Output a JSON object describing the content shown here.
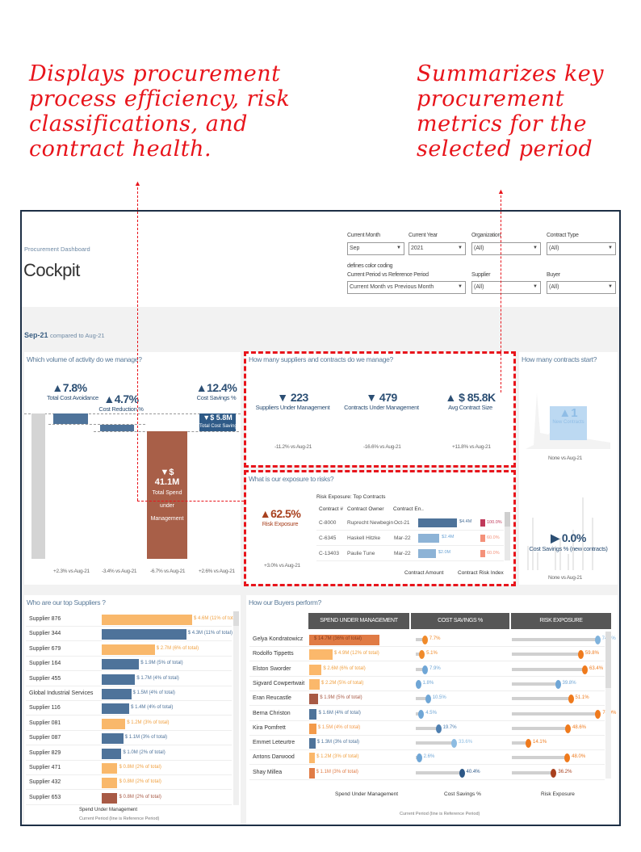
{
  "annotations": {
    "left": "Displays procurement\nprocess efficiency, risk\nclassifications, and\ncontract health.",
    "right": "Summarizes key\nprocurement\nmetrics for the\nselected period"
  },
  "header": {
    "subtitle": "Procurement Dashboard",
    "title": "Cockpit"
  },
  "filters": {
    "month": {
      "label": "Current Month",
      "value": "Sep"
    },
    "year": {
      "label": "Current Year",
      "value": "2021"
    },
    "organization": {
      "label": "Organization",
      "value": "(All)"
    },
    "contract_type": {
      "label": "Contract Type",
      "value": "(All)"
    },
    "period": {
      "label": "Current Period vs Reference Period",
      "note": "defines color coding",
      "value": "Current Month vs Previous Month"
    },
    "supplier": {
      "label": "Supplier",
      "value": "(All)"
    },
    "buyer": {
      "label": "Buyer",
      "value": "(All)"
    }
  },
  "period_header": {
    "current": "Sep-21",
    "compared": "compared to Aug-21"
  },
  "volume": {
    "title": "Which volume of activity do we manage?",
    "cost_avoidance": {
      "value": "7.8%",
      "label": "Total Cost Avoidance",
      "delta": "+2.3% vs Aug-21"
    },
    "cost_reduction": {
      "value": "4.7%",
      "label": "Cost Reduction %",
      "delta": "-3.4% vs Aug-21"
    },
    "total_spend": {
      "value": "$ 41.1M",
      "label": "Total Spend under Management",
      "delta": "-6.7% vs Aug-21"
    },
    "cost_savings": {
      "value": "12.4%",
      "label": "Cost Savings %",
      "bar_value": "$ 5.8M",
      "bar_label": "Total Cost Savings",
      "delta": "+2.6% vs Aug-21"
    }
  },
  "suppliers_contracts": {
    "title": "How many suppliers and contracts do we manage?",
    "kpis": [
      {
        "value": "223",
        "dir": "down",
        "label": "Suppliers Under Management",
        "delta": "-11.2% vs Aug-21"
      },
      {
        "value": "479",
        "dir": "down",
        "label": "Contracts Under Management",
        "delta": "-16.6% vs Aug-21"
      },
      {
        "value": "$ 85.8K",
        "dir": "up",
        "label": "Avg Contract Size",
        "delta": "+11.8% vs Aug-21"
      }
    ]
  },
  "contracts_start": {
    "title": "How many contracts start?",
    "value": "1",
    "label": "New Contracts",
    "delta": "None vs Aug-21"
  },
  "risk": {
    "title": "What is our exposure to risks?",
    "value": "62.5%",
    "label": "Risk Exposure",
    "delta": "+3.0% vs Aug-21",
    "table_title": "Risk Exposure: Top Contracts",
    "columns": [
      "Contract #",
      "Contract Owner",
      "Contract En.."
    ],
    "footer": [
      "Contract Amount",
      "Contract Risk Index"
    ],
    "rows": [
      {
        "id": "C-8000",
        "owner": "Ruprecht Newbegin",
        "end": "Oct-21",
        "amount": "$4.4M",
        "amount_m": 4.4,
        "index": "100.0%",
        "color": "#c0395a"
      },
      {
        "id": "C-6345",
        "owner": "Haskell Hitzke",
        "end": "Mar-22",
        "amount": "$2.4M",
        "amount_m": 2.4,
        "index": "60.0%",
        "color": "#f4917a"
      },
      {
        "id": "C-13403",
        "owner": "Paulie Tune",
        "end": "Mar-22",
        "amount": "$2.0M",
        "amount_m": 2.0,
        "index": "60.0%",
        "color": "#f4917a"
      }
    ]
  },
  "new_savings": {
    "value": "0.0%",
    "label": "Cost Savings % (new contracts)",
    "delta": "None vs Aug-21"
  },
  "top_suppliers": {
    "title": "Who are our top Suppliers ?",
    "axis": "Spend Under Management",
    "note": "Current Period  (line is Reference Period)",
    "rows": [
      {
        "name": "Supplier 876",
        "m": 4.6,
        "text": "$ 4.6M",
        "pct": "(11% of total)",
        "color": "#f9b86b"
      },
      {
        "name": "Supplier 344",
        "m": 4.3,
        "text": "$ 4.3M",
        "pct": "(11% of total)",
        "color": "#4e739a"
      },
      {
        "name": "Supplier 679",
        "m": 2.7,
        "text": "$ 2.7M",
        "pct": "(6% of total)",
        "color": "#f9b86b"
      },
      {
        "name": "Supplier 164",
        "m": 1.9,
        "text": "$ 1.9M",
        "pct": "(5% of total)",
        "color": "#4e739a"
      },
      {
        "name": "Supplier 455",
        "m": 1.7,
        "text": "$ 1.7M",
        "pct": "(4% of total)",
        "color": "#4e739a"
      },
      {
        "name": "Global Industrial Services",
        "m": 1.5,
        "text": "$ 1.5M",
        "pct": "(4% of total)",
        "color": "#4e739a"
      },
      {
        "name": "Supplier 116",
        "m": 1.4,
        "text": "$ 1.4M",
        "pct": "(4% of total)",
        "color": "#4e739a"
      },
      {
        "name": "Supplier 081",
        "m": 1.2,
        "text": "$ 1.2M",
        "pct": "(3% of total)",
        "color": "#f9b86b"
      },
      {
        "name": "Supplier 087",
        "m": 1.1,
        "text": "$ 1.1M",
        "pct": "(3% of total)",
        "color": "#4e739a"
      },
      {
        "name": "Supplier 829",
        "m": 1.0,
        "text": "$ 1.0M",
        "pct": "(2% of total)",
        "color": "#4e739a"
      },
      {
        "name": "Supplier 471",
        "m": 0.8,
        "text": "$ 0.8M",
        "pct": "(2% of total)",
        "color": "#f9b86b"
      },
      {
        "name": "Supplier 432",
        "m": 0.8,
        "text": "$ 0.8M",
        "pct": "(2% of total)",
        "color": "#f9b86b"
      },
      {
        "name": "Supplier 653",
        "m": 0.8,
        "text": "$ 0.8M",
        "pct": "(2% of total)",
        "color": "#a85a45"
      }
    ]
  },
  "buyers": {
    "title": "How our Buyers perform?",
    "headers": [
      "SPEND UNDER MANAGEMENT",
      "COST SAVINGS %",
      "RISK EXPOSURE"
    ],
    "axes": [
      "Spend Under Management",
      "Cost Savings %",
      "Risk Exposure"
    ],
    "note": "Current Period  (line is Reference Period)",
    "rows": [
      {
        "name": "Gelya Kondratowicz",
        "m": 14.7,
        "text": "$ 14.7M",
        "pct": "(36% of total)",
        "color": "#e07b45",
        "cs": 7.7,
        "cs_color": "#f08a2a",
        "risk": 74.4,
        "risk_color": "#7fb2dc"
      },
      {
        "name": "Rodolfo Tippetts",
        "m": 4.9,
        "text": "$ 4.9M",
        "pct": "(12% of total)",
        "color": "#fbb86b",
        "cs": 5.1,
        "cs_color": "#f08a2a",
        "risk": 59.8,
        "risk_color": "#ef7a1c"
      },
      {
        "name": "Elston Sworder",
        "m": 2.6,
        "text": "$ 2.6M",
        "pct": "(6% of total)",
        "color": "#fbb86b",
        "cs": 7.9,
        "cs_color": "#6fa6d6",
        "risk": 63.4,
        "risk_color": "#ef7a1c"
      },
      {
        "name": "Sigvard Cowpertwait",
        "m": 2.2,
        "text": "$ 2.2M",
        "pct": "(5% of total)",
        "color": "#fbb86b",
        "cs": 1.8,
        "cs_color": "#6fa6d6",
        "risk": 39.8,
        "risk_color": "#6fa6d6"
      },
      {
        "name": "Eran Reucastle",
        "m": 1.9,
        "text": "$ 1.9M",
        "pct": "(5% of total)",
        "color": "#a85a45",
        "cs": 10.5,
        "cs_color": "#6fa6d6",
        "risk": 51.1,
        "risk_color": "#ef7a1c"
      },
      {
        "name": "Berna Christon",
        "m": 1.6,
        "text": "$ 1.6M",
        "pct": "(4% of total)",
        "color": "#4e739a",
        "cs": 4.5,
        "cs_color": "#6fa6d6",
        "risk": 74.9,
        "risk_color": "#ef7a1c"
      },
      {
        "name": "Kira Pomfrett",
        "m": 1.5,
        "text": "$ 1.5M",
        "pct": "(4% of total)",
        "color": "#f39a4a",
        "cs": 19.7,
        "cs_color": "#4e7fb0",
        "risk": 48.6,
        "risk_color": "#ef7a1c"
      },
      {
        "name": "Emmet Leteurtre",
        "m": 1.3,
        "text": "$ 1.3M",
        "pct": "(3% of total)",
        "color": "#4e739a",
        "cs": 33.6,
        "cs_color": "#8dbce2",
        "risk": 14.1,
        "risk_color": "#ef7a1c"
      },
      {
        "name": "Antons Darwood",
        "m": 1.2,
        "text": "$ 1.2M",
        "pct": "(3% of total)",
        "color": "#fbb86b",
        "cs": 2.6,
        "cs_color": "#6fa6d6",
        "risk": 48.0,
        "risk_color": "#ef7a1c"
      },
      {
        "name": "Shay Millea",
        "m": 1.1,
        "text": "$ 1.1M",
        "pct": "(3% of total)",
        "color": "#e07b45",
        "cs": 40.4,
        "cs_color": "#2c5786",
        "risk": 36.2,
        "risk_color": "#a8401e"
      }
    ]
  }
}
